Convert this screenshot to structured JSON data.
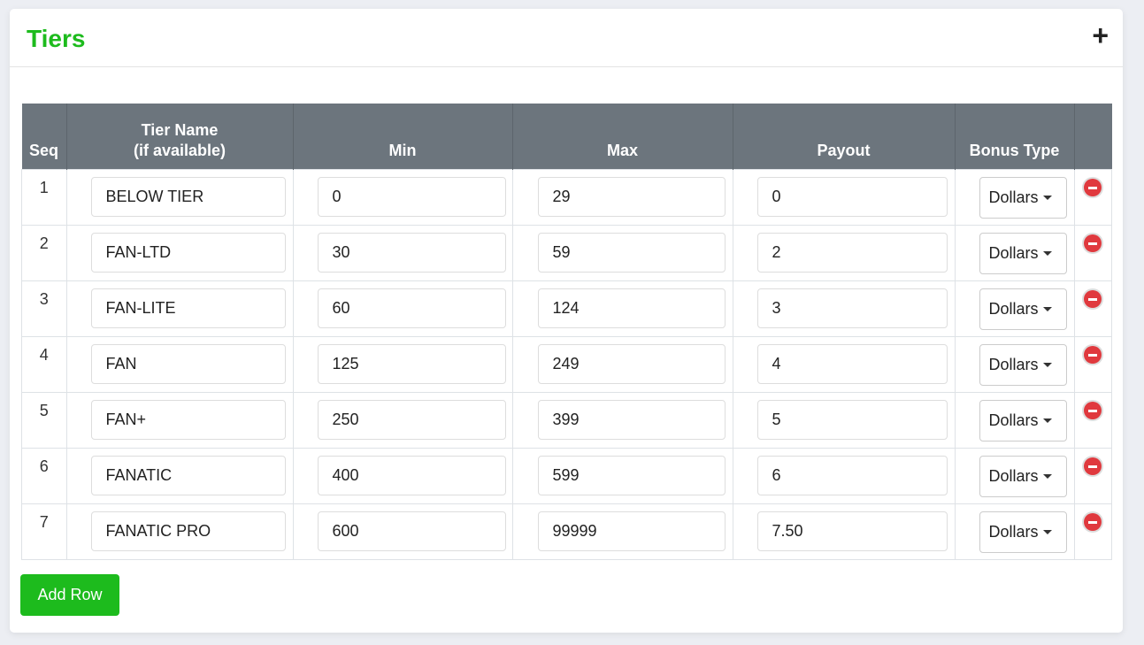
{
  "panel": {
    "title": "Tiers",
    "add_icon": "plus-icon"
  },
  "table": {
    "headers": {
      "seq": "Seq",
      "name_line1": "Tier Name",
      "name_line2": "(if available)",
      "min": "Min",
      "max": "Max",
      "payout": "Payout",
      "bonus": "Bonus Type"
    },
    "rows": [
      {
        "seq": "1",
        "name": "BELOW TIER",
        "min": "0",
        "max": "29",
        "payout": "0",
        "bonus": "Dollars"
      },
      {
        "seq": "2",
        "name": "FAN-LTD",
        "min": "30",
        "max": "59",
        "payout": "2",
        "bonus": "Dollars"
      },
      {
        "seq": "3",
        "name": "FAN-LITE",
        "min": "60",
        "max": "124",
        "payout": "3",
        "bonus": "Dollars"
      },
      {
        "seq": "4",
        "name": "FAN",
        "min": "125",
        "max": "249",
        "payout": "4",
        "bonus": "Dollars"
      },
      {
        "seq": "5",
        "name": "FAN+",
        "min": "250",
        "max": "399",
        "payout": "5",
        "bonus": "Dollars"
      },
      {
        "seq": "6",
        "name": "FANATIC",
        "min": "400",
        "max": "599",
        "payout": "6",
        "bonus": "Dollars"
      },
      {
        "seq": "7",
        "name": "FANATIC PRO",
        "min": "600",
        "max": "99999",
        "payout": "7.50",
        "bonus": "Dollars"
      }
    ]
  },
  "add_row_label": "Add Row",
  "colors": {
    "accent": "#1dbb1d",
    "header_bg": "#6c757d",
    "remove": "#e0393e"
  }
}
